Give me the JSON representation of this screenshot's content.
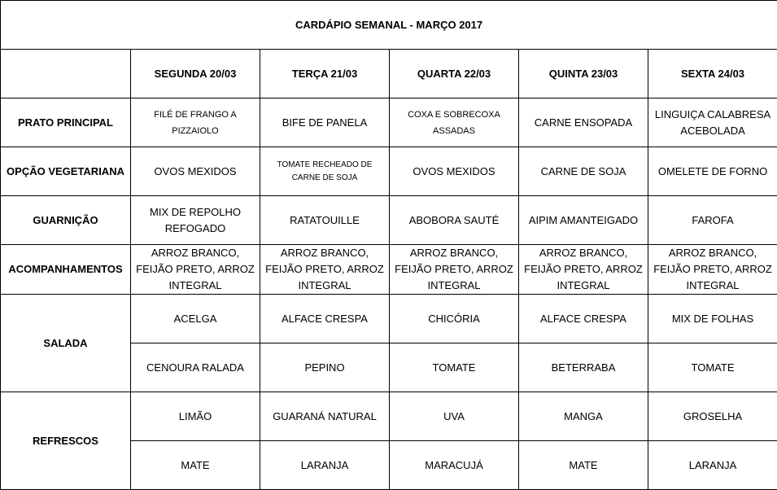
{
  "title": "CARDÁPIO SEMANAL - MARÇO 2017",
  "days": [
    "SEGUNDA 20/03",
    "TERÇA 21/03",
    "QUARTA 22/03",
    "QUINTA 23/03",
    "SEXTA 24/03"
  ],
  "rows": [
    {
      "label": "PRATO PRINCIPAL",
      "cells": [
        "FILÉ DE FRANGO A PIZZAIOLO",
        "BIFE DE PANELA",
        "COXA E SOBRECOXA ASSADAS",
        "CARNE ENSOPADA",
        "LINGUIÇA CALABRESA ACEBOLADA"
      ]
    },
    {
      "label": "OPÇÃO VEGETARIANA",
      "cells": [
        "OVOS MEXIDOS",
        "TOMATE RECHEADO DE CARNE DE SOJA",
        "OVOS MEXIDOS",
        "CARNE DE SOJA",
        "OMELETE DE FORNO"
      ]
    },
    {
      "label": "GUARNIÇÃO",
      "cells": [
        "MIX DE REPOLHO REFOGADO",
        "RATATOUILLE",
        "ABOBORA SAUTÉ",
        "AIPIM AMANTEIGADO",
        "FAROFA"
      ]
    },
    {
      "label": "ACOMPANHAMENTOS",
      "cells": [
        "ARROZ BRANCO, FEIJÃO PRETO, ARROZ INTEGRAL",
        "ARROZ BRANCO, FEIJÃO PRETO, ARROZ INTEGRAL",
        "ARROZ BRANCO, FEIJÃO PRETO, ARROZ INTEGRAL",
        "ARROZ BRANCO, FEIJÃO PRETO, ARROZ INTEGRAL",
        "ARROZ BRANCO, FEIJÃO PRETO, ARROZ INTEGRAL"
      ]
    }
  ],
  "salada": {
    "label": "SALADA",
    "line1": [
      "ACELGA",
      "ALFACE CRESPA",
      "CHICÓRIA",
      "ALFACE CRESPA",
      "MIX DE FOLHAS"
    ],
    "line2": [
      "CENOURA RALADA",
      "PEPINO",
      "TOMATE",
      "BETERRABA",
      "TOMATE"
    ]
  },
  "refrescos": {
    "label": "REFRESCOS",
    "line1": [
      "LIMÃO",
      "GUARANÁ NATURAL",
      "UVA",
      "MANGA",
      "GROSELHA"
    ],
    "line2": [
      "MATE",
      "LARANJA",
      "MARACUJÁ",
      "MATE",
      "LARANJA"
    ]
  }
}
